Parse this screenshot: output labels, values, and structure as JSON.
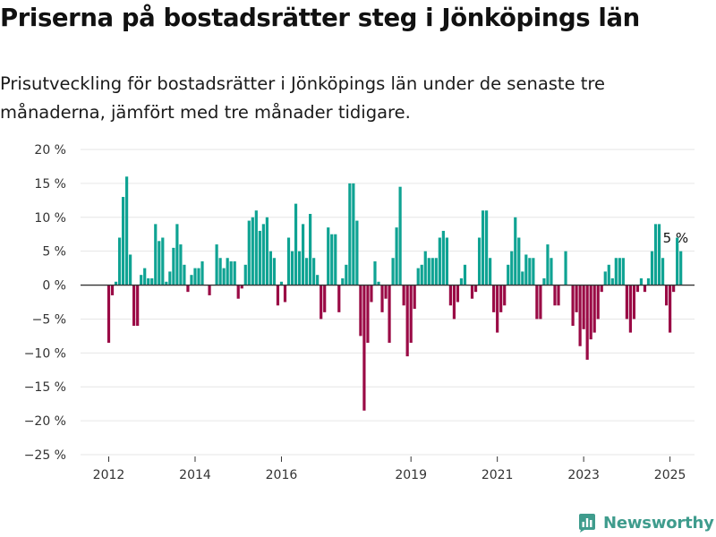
{
  "title": "Priserna på bostadsrätter steg i Jönköpings län",
  "subtitle": "Prisutveckling för bostadsrätter i Jönköpings län under de senaste tre månaderna, jämfört med tre månader tidigare.",
  "brand": {
    "name": "Newsworthy",
    "icon": "bar-chart-logo-icon"
  },
  "colors": {
    "positive": "#0fa393",
    "negative": "#9a0a45",
    "grid": "#e6e6e6",
    "zero_line": "#333333",
    "brand": "#3f9c8d"
  },
  "chart_data": {
    "type": "bar",
    "ylabel": "",
    "xlabel": "",
    "ylim": [
      -25,
      20
    ],
    "y_ticks": [
      {
        "value": 20,
        "label": "20 %"
      },
      {
        "value": 15,
        "label": "15 %"
      },
      {
        "value": 10,
        "label": "10 %"
      },
      {
        "value": 5,
        "label": "5 %"
      },
      {
        "value": 0,
        "label": "0 %"
      },
      {
        "value": -5,
        "label": "−5 %"
      },
      {
        "value": -10,
        "label": "−10 %"
      },
      {
        "value": -15,
        "label": "−15 %"
      },
      {
        "value": -20,
        "label": "−20 %"
      },
      {
        "value": -25,
        "label": "−25 %"
      }
    ],
    "x_ticks": [
      {
        "value": "2012-01",
        "label": "2012"
      },
      {
        "value": "2014-01",
        "label": "2014"
      },
      {
        "value": "2016-01",
        "label": "2016"
      },
      {
        "value": "2019-01",
        "label": "2019"
      },
      {
        "value": "2021-01",
        "label": "2021"
      },
      {
        "value": "2023-01",
        "label": "2023"
      },
      {
        "value": "2025-01",
        "label": "2025"
      }
    ],
    "x_start": "2012-01",
    "grid": true,
    "annotation": {
      "x": "2025-02",
      "label": "5 %"
    },
    "values": [
      -8.5,
      -1.5,
      0.5,
      7,
      13,
      16,
      4.5,
      -6,
      -6,
      1.5,
      2.5,
      1,
      1,
      9,
      6.5,
      7,
      0.5,
      2,
      5.5,
      9,
      6,
      3,
      -1,
      1.5,
      2.5,
      2.5,
      3.5,
      0,
      -1.5,
      0,
      6,
      4,
      2.5,
      4,
      3.5,
      3.5,
      -2,
      -0.5,
      3,
      9.5,
      10,
      11,
      8,
      9,
      10,
      5,
      4,
      -3,
      0.5,
      -2.5,
      7,
      5,
      12,
      5,
      9,
      4,
      10.5,
      4,
      1.5,
      -5,
      -4,
      8.5,
      7.5,
      7.5,
      -4,
      1,
      3,
      15,
      15,
      9.5,
      -7.5,
      -18.5,
      -8.5,
      -2.5,
      3.5,
      0.5,
      -4,
      -2,
      -8.5,
      4,
      8.5,
      14.5,
      -3,
      -10.5,
      -8.5,
      -3.5,
      2.5,
      3,
      5,
      4,
      4,
      4,
      7,
      8,
      7,
      -3,
      -5,
      -2.5,
      1,
      3,
      0,
      -2,
      -1,
      7,
      11,
      11,
      4,
      -4,
      -7,
      -4,
      -3,
      3,
      5,
      10,
      7,
      2,
      4.5,
      4,
      4,
      -5,
      -5,
      1,
      6,
      4,
      -3,
      -3,
      0,
      5,
      0,
      -6,
      -4,
      -9,
      -6.5,
      -11,
      -8,
      -7,
      -5,
      -1,
      2,
      3,
      1,
      4,
      4,
      4,
      -5,
      -7,
      -5,
      -1,
      1,
      -1,
      1,
      5,
      9,
      9,
      4,
      -3,
      -7,
      -1,
      7,
      5
    ]
  }
}
